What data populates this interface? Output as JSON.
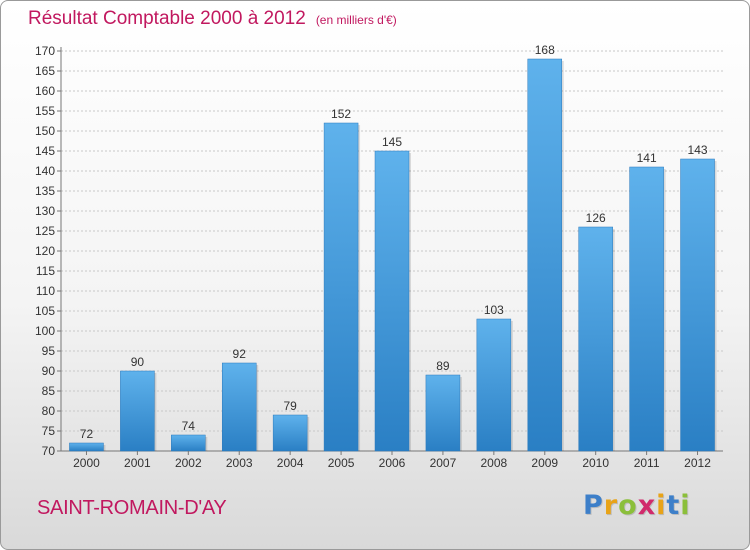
{
  "title": "Résultat Comptable 2000 à 2012",
  "unit": "(en milliers d'€)",
  "commune": "SAINT-ROMAIN-D'AY",
  "logo": {
    "text": "Proxiti",
    "letters": [
      "P",
      "r",
      "o",
      "x",
      "i",
      "t",
      "i"
    ],
    "colors": [
      "#3d7fc9",
      "#e8a317",
      "#8bbf3a",
      "#d12a6b",
      "#e8a317",
      "#3d7fc9",
      "#8bbf3a"
    ]
  },
  "colors": {
    "bar": "#3f9be0",
    "bar_light": "#5fb2ec",
    "bar_dark": "#2a7fc4",
    "title": "#c1185f"
  },
  "chart_data": {
    "type": "bar",
    "categories": [
      "2000",
      "2001",
      "2002",
      "2003",
      "2004",
      "2005",
      "2006",
      "2007",
      "2008",
      "2009",
      "2010",
      "2011",
      "2012"
    ],
    "values": [
      72,
      90,
      74,
      92,
      79,
      152,
      145,
      89,
      103,
      168,
      126,
      141,
      143
    ],
    "title": "Résultat Comptable 2000 à 2012",
    "xlabel": "",
    "ylabel": "",
    "ylim": [
      70,
      170
    ],
    "yticks": [
      70,
      75,
      80,
      85,
      90,
      95,
      100,
      105,
      110,
      115,
      120,
      125,
      130,
      135,
      140,
      145,
      150,
      155,
      160,
      165,
      170
    ],
    "grid": true,
    "legend": "none"
  }
}
